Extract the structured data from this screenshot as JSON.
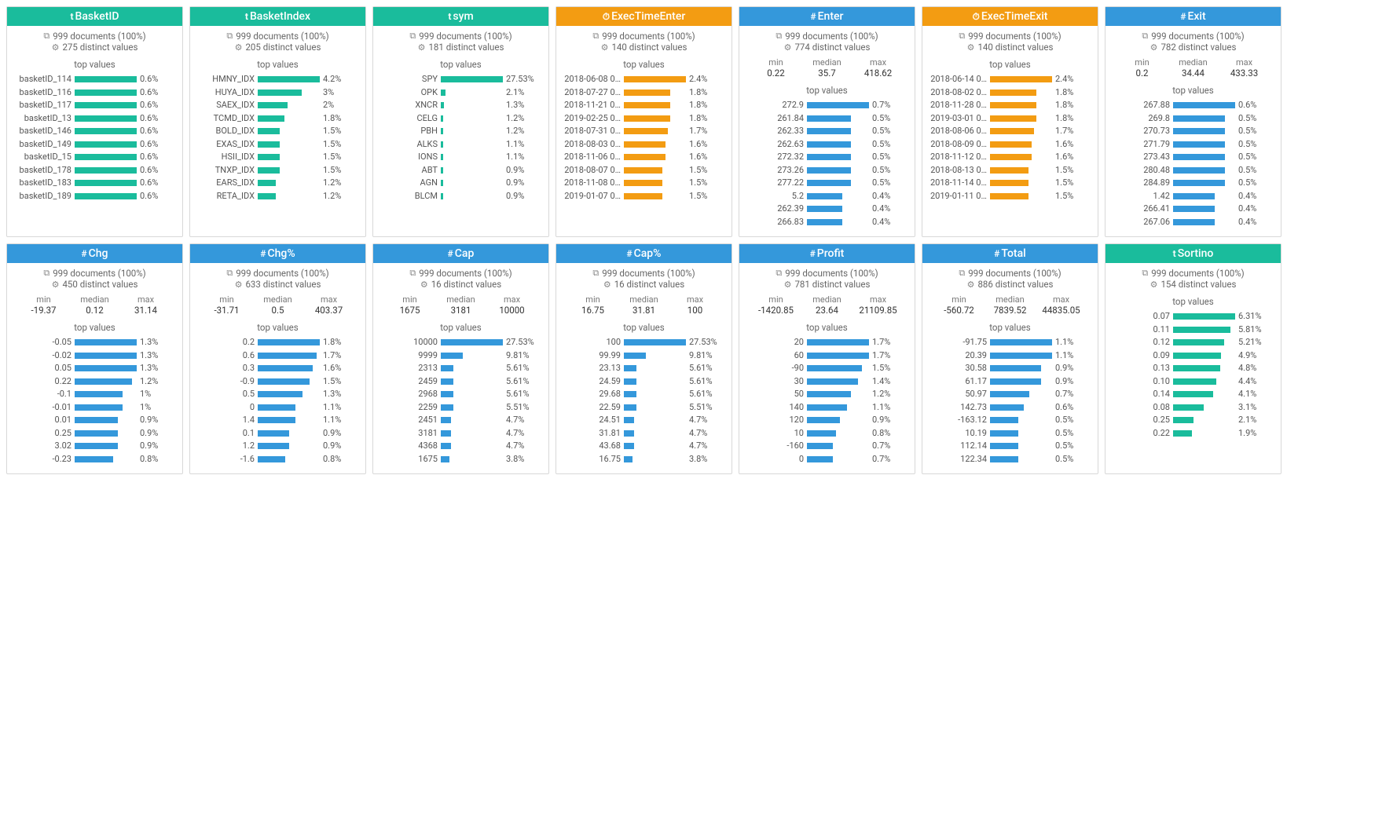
{
  "colors": {
    "teal": "#1abc9c",
    "orange": "#f39c12",
    "blue": "#3498db"
  },
  "labels": {
    "documents_suffix": "documents (100%)",
    "distinct_suffix": "distinct values",
    "top_values": "top values",
    "min": "min",
    "median": "median",
    "max": "max"
  },
  "cards": [
    {
      "title": "BasketID",
      "type_icon": "t",
      "header_color": "teal",
      "bar_color": "#1abc9c",
      "docs": "999",
      "distinct": "275",
      "top": [
        {
          "l": "basketID_114",
          "p": 0.6
        },
        {
          "l": "basketID_116",
          "p": 0.6
        },
        {
          "l": "basketID_117",
          "p": 0.6
        },
        {
          "l": "basketID_13",
          "p": 0.6
        },
        {
          "l": "basketID_146",
          "p": 0.6
        },
        {
          "l": "basketID_149",
          "p": 0.6
        },
        {
          "l": "basketID_15",
          "p": 0.6
        },
        {
          "l": "basketID_178",
          "p": 0.6
        },
        {
          "l": "basketID_183",
          "p": 0.6
        },
        {
          "l": "basketID_189",
          "p": 0.6
        }
      ]
    },
    {
      "title": "BasketIndex",
      "type_icon": "t",
      "header_color": "teal",
      "bar_color": "#1abc9c",
      "docs": "999",
      "distinct": "205",
      "top": [
        {
          "l": "HMNY_IDX",
          "p": 4.2
        },
        {
          "l": "HUYA_IDX",
          "p": 3
        },
        {
          "l": "SAEX_IDX",
          "p": 2
        },
        {
          "l": "TCMD_IDX",
          "p": 1.8
        },
        {
          "l": "BOLD_IDX",
          "p": 1.5
        },
        {
          "l": "EXAS_IDX",
          "p": 1.5
        },
        {
          "l": "HSII_IDX",
          "p": 1.5
        },
        {
          "l": "TNXP_IDX",
          "p": 1.5
        },
        {
          "l": "EARS_IDX",
          "p": 1.2
        },
        {
          "l": "RETA_IDX",
          "p": 1.2
        }
      ]
    },
    {
      "title": "sym",
      "type_icon": "t",
      "header_color": "teal",
      "bar_color": "#1abc9c",
      "docs": "999",
      "distinct": "181",
      "top": [
        {
          "l": "SPY",
          "p": 27.53
        },
        {
          "l": "OPK",
          "p": 2.1
        },
        {
          "l": "XNCR",
          "p": 1.3
        },
        {
          "l": "CELG",
          "p": 1.2
        },
        {
          "l": "PBH",
          "p": 1.2
        },
        {
          "l": "ALKS",
          "p": 1.1
        },
        {
          "l": "IONS",
          "p": 1.1
        },
        {
          "l": "ABT",
          "p": 0.9
        },
        {
          "l": "AGN",
          "p": 0.9
        },
        {
          "l": "BLCM",
          "p": 0.9
        }
      ]
    },
    {
      "title": "ExecTimeEnter",
      "type_icon": "⏱",
      "header_color": "orange",
      "bar_color": "#f39c12",
      "docs": "999",
      "distinct": "140",
      "top": [
        {
          "l": "2018-06-08 0…",
          "p": 2.4
        },
        {
          "l": "2018-07-27 0…",
          "p": 1.8
        },
        {
          "l": "2018-11-21 00:…",
          "p": 1.8
        },
        {
          "l": "2019-02-25 0…",
          "p": 1.8
        },
        {
          "l": "2018-07-31 0…",
          "p": 1.7
        },
        {
          "l": "2018-08-03 0…",
          "p": 1.6
        },
        {
          "l": "2018-11-06 00…",
          "p": 1.6
        },
        {
          "l": "2018-08-07 0…",
          "p": 1.5
        },
        {
          "l": "2018-11-08 00…",
          "p": 1.5
        },
        {
          "l": "2019-01-07 0…",
          "p": 1.5
        }
      ]
    },
    {
      "title": "Enter",
      "type_icon": "#",
      "header_color": "blue",
      "bar_color": "#3498db",
      "docs": "999",
      "distinct": "774",
      "stats": {
        "min": "0.22",
        "median": "35.7",
        "max": "418.62"
      },
      "top": [
        {
          "l": "272.9",
          "p": 0.7
        },
        {
          "l": "261.84",
          "p": 0.5
        },
        {
          "l": "262.33",
          "p": 0.5
        },
        {
          "l": "262.63",
          "p": 0.5
        },
        {
          "l": "272.32",
          "p": 0.5
        },
        {
          "l": "273.26",
          "p": 0.5
        },
        {
          "l": "277.22",
          "p": 0.5
        },
        {
          "l": "5.2",
          "p": 0.4
        },
        {
          "l": "262.39",
          "p": 0.4
        },
        {
          "l": "266.83",
          "p": 0.4
        }
      ]
    },
    {
      "title": "ExecTimeExit",
      "type_icon": "⏱",
      "header_color": "orange",
      "bar_color": "#f39c12",
      "docs": "999",
      "distinct": "140",
      "top": [
        {
          "l": "2018-06-14 0…",
          "p": 2.4
        },
        {
          "l": "2018-08-02 0…",
          "p": 1.8
        },
        {
          "l": "2018-11-28 00:…",
          "p": 1.8
        },
        {
          "l": "2019-03-01 0…",
          "p": 1.8
        },
        {
          "l": "2018-08-06 0…",
          "p": 1.7
        },
        {
          "l": "2018-08-09 0…",
          "p": 1.6
        },
        {
          "l": "2018-11-12 00:…",
          "p": 1.6
        },
        {
          "l": "2018-08-13 0…",
          "p": 1.5
        },
        {
          "l": "2018-11-14 00:…",
          "p": 1.5
        },
        {
          "l": "2019-01-11 00:…",
          "p": 1.5
        }
      ]
    },
    {
      "title": "Exit",
      "type_icon": "#",
      "header_color": "blue",
      "bar_color": "#3498db",
      "docs": "999",
      "distinct": "782",
      "stats": {
        "min": "0.2",
        "median": "34.44",
        "max": "433.33"
      },
      "top": [
        {
          "l": "267.88",
          "p": 0.6
        },
        {
          "l": "269.8",
          "p": 0.5
        },
        {
          "l": "270.73",
          "p": 0.5
        },
        {
          "l": "271.79",
          "p": 0.5
        },
        {
          "l": "273.43",
          "p": 0.5
        },
        {
          "l": "280.48",
          "p": 0.5
        },
        {
          "l": "284.89",
          "p": 0.5
        },
        {
          "l": "1.42",
          "p": 0.4
        },
        {
          "l": "266.41",
          "p": 0.4
        },
        {
          "l": "267.06",
          "p": 0.4
        }
      ]
    },
    {
      "title": "Chg",
      "type_icon": "#",
      "header_color": "blue",
      "bar_color": "#3498db",
      "docs": "999",
      "distinct": "450",
      "stats": {
        "min": "-19.37",
        "median": "0.12",
        "max": "31.14"
      },
      "top": [
        {
          "l": "-0.05",
          "p": 1.3
        },
        {
          "l": "-0.02",
          "p": 1.3
        },
        {
          "l": "0.05",
          "p": 1.3
        },
        {
          "l": "0.22",
          "p": 1.2
        },
        {
          "l": "-0.1",
          "p": 1
        },
        {
          "l": "-0.01",
          "p": 1
        },
        {
          "l": "0.01",
          "p": 0.9
        },
        {
          "l": "0.25",
          "p": 0.9
        },
        {
          "l": "3.02",
          "p": 0.9
        },
        {
          "l": "-0.23",
          "p": 0.8
        }
      ]
    },
    {
      "title": "Chg%",
      "type_icon": "#",
      "header_color": "blue",
      "bar_color": "#3498db",
      "docs": "999",
      "distinct": "633",
      "stats": {
        "min": "-31.71",
        "median": "0.5",
        "max": "403.37"
      },
      "top": [
        {
          "l": "0.2",
          "p": 1.8
        },
        {
          "l": "0.6",
          "p": 1.7
        },
        {
          "l": "0.3",
          "p": 1.6
        },
        {
          "l": "-0.9",
          "p": 1.5
        },
        {
          "l": "0.5",
          "p": 1.3
        },
        {
          "l": "0",
          "p": 1.1
        },
        {
          "l": "1.4",
          "p": 1.1
        },
        {
          "l": "0.1",
          "p": 0.9
        },
        {
          "l": "1.2",
          "p": 0.9
        },
        {
          "l": "-1.6",
          "p": 0.8
        }
      ]
    },
    {
      "title": "Cap",
      "type_icon": "#",
      "header_color": "blue",
      "bar_color": "#3498db",
      "docs": "999",
      "distinct": "16",
      "stats": {
        "min": "1675",
        "median": "3181",
        "max": "10000"
      },
      "top": [
        {
          "l": "10000",
          "p": 27.53
        },
        {
          "l": "9999",
          "p": 9.81
        },
        {
          "l": "2313",
          "p": 5.61
        },
        {
          "l": "2459",
          "p": 5.61
        },
        {
          "l": "2968",
          "p": 5.61
        },
        {
          "l": "2259",
          "p": 5.51
        },
        {
          "l": "2451",
          "p": 4.7
        },
        {
          "l": "3181",
          "p": 4.7
        },
        {
          "l": "4368",
          "p": 4.7
        },
        {
          "l": "1675",
          "p": 3.8
        }
      ]
    },
    {
      "title": "Cap%",
      "type_icon": "#",
      "header_color": "blue",
      "bar_color": "#3498db",
      "docs": "999",
      "distinct": "16",
      "stats": {
        "min": "16.75",
        "median": "31.81",
        "max": "100"
      },
      "top": [
        {
          "l": "100",
          "p": 27.53
        },
        {
          "l": "99.99",
          "p": 9.81
        },
        {
          "l": "23.13",
          "p": 5.61
        },
        {
          "l": "24.59",
          "p": 5.61
        },
        {
          "l": "29.68",
          "p": 5.61
        },
        {
          "l": "22.59",
          "p": 5.51
        },
        {
          "l": "24.51",
          "p": 4.7
        },
        {
          "l": "31.81",
          "p": 4.7
        },
        {
          "l": "43.68",
          "p": 4.7
        },
        {
          "l": "16.75",
          "p": 3.8
        }
      ]
    },
    {
      "title": "Profit",
      "type_icon": "#",
      "header_color": "blue",
      "bar_color": "#3498db",
      "docs": "999",
      "distinct": "781",
      "stats": {
        "min": "-1420.85",
        "median": "23.64",
        "max": "21109.85"
      },
      "top": [
        {
          "l": "20",
          "p": 1.7
        },
        {
          "l": "60",
          "p": 1.7
        },
        {
          "l": "-90",
          "p": 1.5
        },
        {
          "l": "30",
          "p": 1.4
        },
        {
          "l": "50",
          "p": 1.2
        },
        {
          "l": "140",
          "p": 1.1
        },
        {
          "l": "120",
          "p": 0.9
        },
        {
          "l": "10",
          "p": 0.8
        },
        {
          "l": "-160",
          "p": 0.7
        },
        {
          "l": "0",
          "p": 0.7
        }
      ]
    },
    {
      "title": "Total",
      "type_icon": "#",
      "header_color": "blue",
      "bar_color": "#3498db",
      "docs": "999",
      "distinct": "886",
      "stats": {
        "min": "-560.72",
        "median": "7839.52",
        "max": "44835.05"
      },
      "top": [
        {
          "l": "-91.75",
          "p": 1.1
        },
        {
          "l": "20.39",
          "p": 1.1
        },
        {
          "l": "30.58",
          "p": 0.9
        },
        {
          "l": "61.17",
          "p": 0.9
        },
        {
          "l": "50.97",
          "p": 0.7
        },
        {
          "l": "142.73",
          "p": 0.6
        },
        {
          "l": "-163.12",
          "p": 0.5
        },
        {
          "l": "10.19",
          "p": 0.5
        },
        {
          "l": "112.14",
          "p": 0.5
        },
        {
          "l": "122.34",
          "p": 0.5
        }
      ]
    },
    {
      "title": "Sortino",
      "type_icon": "t",
      "header_color": "teal",
      "bar_color": "#1abc9c",
      "docs": "999",
      "distinct": "154",
      "top": [
        {
          "l": "0.07",
          "p": 6.31
        },
        {
          "l": "0.11",
          "p": 5.81
        },
        {
          "l": "0.12",
          "p": 5.21
        },
        {
          "l": "0.09",
          "p": 4.9
        },
        {
          "l": "0.13",
          "p": 4.8
        },
        {
          "l": "0.10",
          "p": 4.4
        },
        {
          "l": "0.14",
          "p": 4.1
        },
        {
          "l": "0.08",
          "p": 3.1
        },
        {
          "l": "0.25",
          "p": 2.1
        },
        {
          "l": "0.22",
          "p": 1.9
        }
      ]
    }
  ]
}
